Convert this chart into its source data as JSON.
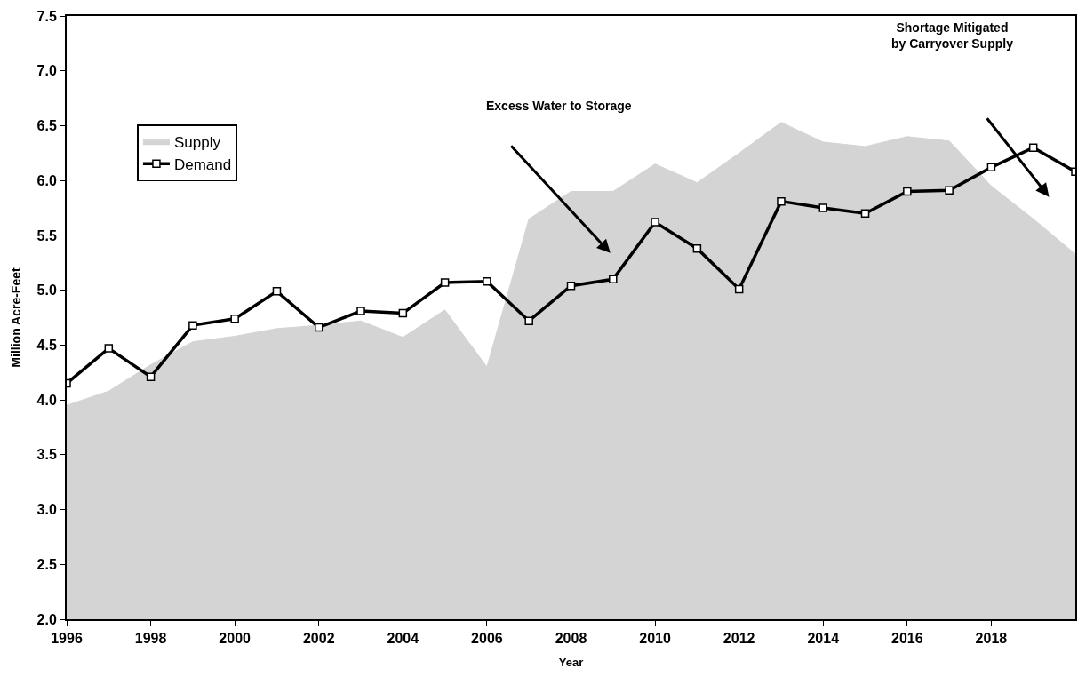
{
  "chart_data": {
    "type": "line",
    "xlabel": "Year",
    "ylabel": "Million Acre-Feet",
    "x": [
      1996,
      1997,
      1998,
      1999,
      2000,
      2001,
      2002,
      2003,
      2004,
      2005,
      2006,
      2007,
      2008,
      2009,
      2010,
      2011,
      2012,
      2013,
      2014,
      2015,
      2016,
      2017,
      2018,
      2019,
      2020
    ],
    "series": [
      {
        "name": "Supply",
        "type": "area",
        "color": "#d4d4d4",
        "marker": "none",
        "values": [
          3.95,
          4.08,
          4.32,
          4.53,
          4.58,
          4.65,
          4.68,
          4.72,
          4.57,
          4.82,
          4.3,
          5.65,
          5.9,
          5.9,
          6.15,
          5.98,
          6.25,
          6.53,
          6.35,
          6.31,
          6.4,
          6.36,
          5.95,
          5.65,
          5.33
        ]
      },
      {
        "name": "Demand",
        "color": "#000000",
        "marker": "square",
        "values": [
          4.15,
          4.47,
          4.21,
          4.68,
          4.74,
          4.99,
          4.66,
          4.81,
          4.79,
          5.07,
          5.08,
          4.72,
          5.04,
          5.1,
          5.62,
          5.38,
          5.01,
          5.81,
          5.75,
          5.7,
          5.9,
          5.91,
          6.12,
          6.3,
          6.08
        ]
      }
    ],
    "xlim": [
      1996,
      2020
    ],
    "xticks": [
      1996,
      1998,
      2000,
      2002,
      2004,
      2006,
      2008,
      2010,
      2012,
      2014,
      2016,
      2018
    ],
    "ylim": [
      2.0,
      7.5
    ],
    "yticks": [
      {
        "value": 2,
        "label": "2.0"
      },
      {
        "value": 2.5,
        "label": "2.5"
      },
      {
        "value": 3,
        "label": "3.0"
      },
      {
        "value": 3.5,
        "label": "3.5"
      },
      {
        "value": 4,
        "label": "4.0"
      },
      {
        "value": 4.5,
        "label": "4.5"
      },
      {
        "value": 5,
        "label": "5.0"
      },
      {
        "value": 5.5,
        "label": "5.5"
      },
      {
        "value": 6,
        "label": "6.0"
      },
      {
        "value": 6.5,
        "label": "6.5"
      },
      {
        "value": 7,
        "label": "7.0"
      },
      {
        "value": 7.5,
        "label": "7.5"
      }
    ],
    "annotations": [
      "Excess Water to Storage",
      "Shortage Mitigated\nby Carryover Supply"
    ],
    "legend": "top left"
  }
}
